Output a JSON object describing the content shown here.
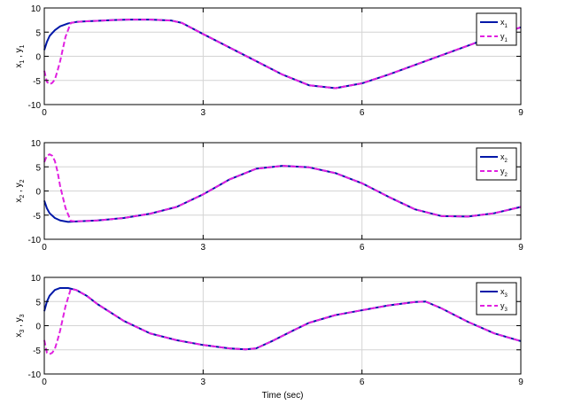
{
  "figure": {
    "xlabel": "Time (sec)",
    "colors": {
      "x": "#0018a8",
      "y": "#e020e0",
      "grid": "#d4d4d4",
      "axis": "#000000",
      "background": "#ffffff"
    }
  },
  "chart_data": [
    {
      "type": "line",
      "ylabel": {
        "a": "x",
        "sa": "1",
        "b": "y",
        "sb": "1"
      },
      "xlim": [
        0,
        9
      ],
      "ylim": [
        -10,
        10
      ],
      "xticks": [
        "0",
        "3",
        "6",
        "9"
      ],
      "yticks": [
        "10",
        "5",
        "0",
        "-5",
        "-10"
      ],
      "grid": true,
      "legend_position": "top-right",
      "series": [
        {
          "name": "x",
          "sub": "1",
          "style": "solid",
          "x": [
            0,
            0.05,
            0.1,
            0.2,
            0.3,
            0.45,
            0.6,
            0.8,
            1.0,
            1.3,
            1.6,
            2.0,
            2.4,
            2.6,
            3.0,
            3.5,
            4.0,
            4.5,
            5.0,
            5.5,
            6.0,
            6.5,
            7.0,
            7.5,
            8.0,
            8.5,
            9.0
          ],
          "y": [
            1.3,
            3.0,
            4.2,
            5.4,
            6.2,
            6.8,
            7.1,
            7.25,
            7.35,
            7.5,
            7.6,
            7.6,
            7.4,
            6.9,
            4.6,
            1.8,
            -1.0,
            -3.8,
            -6.0,
            -6.6,
            -5.6,
            -3.8,
            -1.8,
            0.2,
            2.2,
            4.2,
            6.0
          ]
        },
        {
          "name": "y",
          "sub": "1",
          "style": "dashed",
          "x": [
            0,
            0.05,
            0.1,
            0.15,
            0.2,
            0.25,
            0.3,
            0.4,
            0.5,
            0.6,
            0.8,
            1.0,
            1.3,
            1.6,
            2.0,
            2.4,
            2.6,
            3.0,
            3.5,
            4.0,
            4.5,
            5.0,
            5.5,
            6.0,
            6.5,
            7.0,
            7.5,
            8.0,
            8.5,
            9.0
          ],
          "y": [
            -3.0,
            -5.3,
            -5.8,
            -5.5,
            -4.8,
            -3.0,
            -1.0,
            4.0,
            6.9,
            7.1,
            7.25,
            7.35,
            7.5,
            7.6,
            7.6,
            7.4,
            6.9,
            4.6,
            1.8,
            -1.0,
            -3.8,
            -6.0,
            -6.6,
            -5.6,
            -3.8,
            -1.8,
            0.2,
            2.2,
            4.2,
            6.0
          ]
        }
      ]
    },
    {
      "type": "line",
      "ylabel": {
        "a": "x",
        "sa": "2",
        "b": "y",
        "sb": "2"
      },
      "xlim": [
        0,
        9
      ],
      "ylim": [
        -10,
        10
      ],
      "xticks": [
        "0",
        "3",
        "6",
        "9"
      ],
      "yticks": [
        "10",
        "5",
        "0",
        "-5",
        "-10"
      ],
      "grid": true,
      "legend_position": "top-right",
      "series": [
        {
          "name": "x",
          "sub": "2",
          "style": "solid",
          "x": [
            0,
            0.05,
            0.1,
            0.2,
            0.3,
            0.45,
            0.6,
            1.0,
            1.5,
            2.0,
            2.5,
            3.0,
            3.5,
            4.0,
            4.5,
            5.0,
            5.5,
            6.0,
            6.5,
            7.0,
            7.5,
            8.0,
            8.5,
            9.0
          ],
          "y": [
            -2.0,
            -3.6,
            -4.6,
            -5.6,
            -6.1,
            -6.4,
            -6.3,
            -6.1,
            -5.6,
            -4.7,
            -3.3,
            -0.7,
            2.4,
            4.6,
            5.2,
            4.9,
            3.7,
            1.6,
            -1.2,
            -3.8,
            -5.2,
            -5.3,
            -4.6,
            -3.3
          ]
        },
        {
          "name": "y",
          "sub": "2",
          "style": "dashed",
          "x": [
            0,
            0.05,
            0.1,
            0.15,
            0.2,
            0.25,
            0.3,
            0.4,
            0.5,
            0.6,
            1.0,
            1.5,
            2.0,
            2.5,
            3.0,
            3.5,
            4.0,
            4.5,
            5.0,
            5.5,
            6.0,
            6.5,
            7.0,
            7.5,
            8.0,
            8.5,
            9.0
          ],
          "y": [
            6.0,
            7.3,
            7.6,
            7.3,
            6.2,
            4.0,
            1.0,
            -3.5,
            -6.2,
            -6.3,
            -6.1,
            -5.6,
            -4.7,
            -3.3,
            -0.7,
            2.4,
            4.6,
            5.2,
            4.9,
            3.7,
            1.6,
            -1.2,
            -3.8,
            -5.2,
            -5.3,
            -4.6,
            -3.3
          ]
        }
      ]
    },
    {
      "type": "line",
      "ylabel": {
        "a": "x",
        "sa": "3",
        "b": "y",
        "sb": "3"
      },
      "xlim": [
        0,
        9
      ],
      "ylim": [
        -10,
        10
      ],
      "xticks": [
        "0",
        "3",
        "6",
        "9"
      ],
      "yticks": [
        "10",
        "5",
        "0",
        "-5",
        "-10"
      ],
      "grid": true,
      "legend_position": "top-right",
      "series": [
        {
          "name": "x",
          "sub": "3",
          "style": "solid",
          "x": [
            0,
            0.05,
            0.1,
            0.2,
            0.3,
            0.45,
            0.6,
            0.8,
            1.0,
            1.5,
            2.0,
            2.5,
            3.0,
            3.5,
            3.8,
            4.0,
            4.3,
            4.7,
            5.0,
            5.5,
            6.0,
            6.5,
            7.0,
            7.2,
            7.5,
            8.0,
            8.5,
            9.0
          ],
          "y": [
            3.0,
            5.0,
            6.2,
            7.4,
            7.8,
            7.8,
            7.4,
            6.2,
            4.5,
            1.0,
            -1.6,
            -3.0,
            -4.0,
            -4.7,
            -4.9,
            -4.7,
            -3.2,
            -1.0,
            0.6,
            2.2,
            3.2,
            4.2,
            4.9,
            5.0,
            3.6,
            0.8,
            -1.6,
            -3.2
          ]
        },
        {
          "name": "y",
          "sub": "3",
          "style": "dashed",
          "x": [
            0,
            0.05,
            0.1,
            0.15,
            0.2,
            0.25,
            0.3,
            0.4,
            0.5,
            0.6,
            0.8,
            1.0,
            1.5,
            2.0,
            2.5,
            3.0,
            3.5,
            3.8,
            4.0,
            4.3,
            4.7,
            5.0,
            5.5,
            6.0,
            6.5,
            7.0,
            7.2,
            7.5,
            8.0,
            8.5,
            9.0
          ],
          "y": [
            -3.0,
            -5.6,
            -5.9,
            -5.6,
            -4.8,
            -3.0,
            -1.0,
            4.0,
            7.6,
            7.4,
            6.2,
            4.5,
            1.0,
            -1.6,
            -3.0,
            -4.0,
            -4.7,
            -4.9,
            -4.7,
            -3.2,
            -1.0,
            0.6,
            2.2,
            3.2,
            4.2,
            4.9,
            5.0,
            3.6,
            0.8,
            -1.6,
            -3.2
          ]
        }
      ]
    }
  ]
}
